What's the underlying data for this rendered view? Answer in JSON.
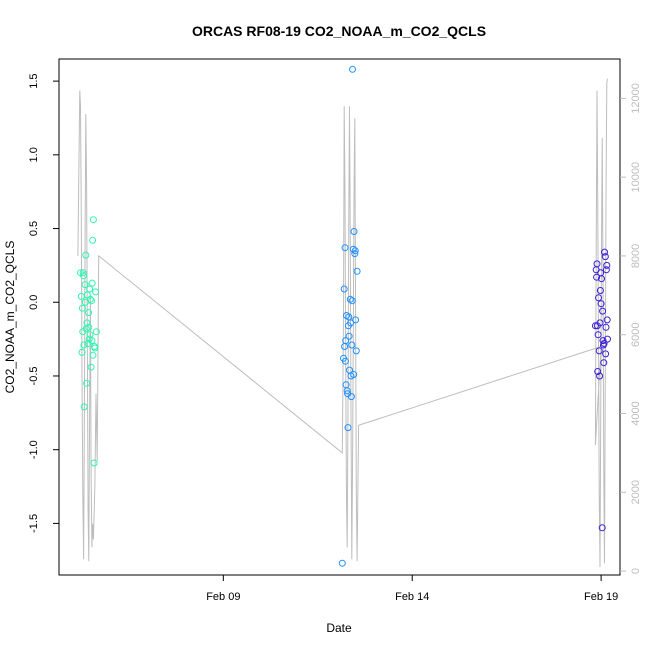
{
  "chart_data": {
    "type": "scatter",
    "title": "ORCAS RF08-19 CO2_NOAA_m_CO2_QCLS",
    "xlabel": "Date",
    "ylabel": "CO2_NOAA_m_CO2_QCLS",
    "x_unit": "days in February",
    "xlim": [
      4.65,
      19.5
    ],
    "ylim": [
      -1.85,
      1.65
    ],
    "y2lim": [
      -100,
      13000
    ],
    "x_ticks": [
      {
        "value": 9,
        "label": "Feb 09"
      },
      {
        "value": 14,
        "label": "Feb 14"
      },
      {
        "value": 19,
        "label": "Feb 19"
      }
    ],
    "y_ticks": [
      {
        "value": -1.5,
        "label": "-1.5"
      },
      {
        "value": -1.0,
        "label": "-1.0"
      },
      {
        "value": -0.5,
        "label": "-0.5"
      },
      {
        "value": 0.0,
        "label": "0.0"
      },
      {
        "value": 0.5,
        "label": "0.5"
      },
      {
        "value": 1.0,
        "label": "1.0"
      },
      {
        "value": 1.5,
        "label": "1.5"
      }
    ],
    "y2_ticks": [
      {
        "value": 0,
        "label": "0"
      },
      {
        "value": 2000,
        "label": "2000"
      },
      {
        "value": 4000,
        "label": "4000"
      },
      {
        "value": 6000,
        "label": "6000"
      },
      {
        "value": 8000,
        "label": "8000"
      },
      {
        "value": 10000,
        "label": "10000"
      },
      {
        "value": 12000,
        "label": "12000"
      }
    ],
    "grid": false,
    "legend": "none",
    "altitude_color": "#bdbdbd",
    "altitude_trace": [
      [
        5.15,
        8000
      ],
      [
        5.18,
        10500
      ],
      [
        5.2,
        12200
      ],
      [
        5.22,
        11800
      ],
      [
        5.24,
        9000
      ],
      [
        5.26,
        5000
      ],
      [
        5.28,
        2000
      ],
      [
        5.3,
        300
      ],
      [
        5.32,
        3500
      ],
      [
        5.34,
        8500
      ],
      [
        5.36,
        11600
      ],
      [
        5.38,
        9800
      ],
      [
        5.4,
        6000
      ],
      [
        5.42,
        1500
      ],
      [
        5.44,
        250
      ],
      [
        5.46,
        4000
      ],
      [
        5.48,
        7000
      ],
      [
        5.5,
        2500
      ],
      [
        5.52,
        600
      ],
      [
        5.54,
        1200
      ],
      [
        5.56,
        800
      ],
      [
        5.6,
        2200
      ],
      [
        5.63,
        4500
      ],
      [
        5.66,
        2800
      ],
      [
        5.7,
        8000
      ],
      [
        12.15,
        3000
      ],
      [
        12.18,
        6500
      ],
      [
        12.2,
        11800
      ],
      [
        12.22,
        9500
      ],
      [
        12.24,
        5200
      ],
      [
        12.26,
        1800
      ],
      [
        12.28,
        600
      ],
      [
        12.3,
        4200
      ],
      [
        12.32,
        9000
      ],
      [
        12.34,
        11800
      ],
      [
        12.36,
        8200
      ],
      [
        12.38,
        4000
      ],
      [
        12.4,
        300
      ],
      [
        12.42,
        2500
      ],
      [
        12.44,
        6000
      ],
      [
        12.46,
        9500
      ],
      [
        12.48,
        11500
      ],
      [
        12.5,
        6500
      ],
      [
        12.52,
        2000
      ],
      [
        12.54,
        250
      ],
      [
        12.58,
        3700
      ],
      [
        19.0,
        5700
      ],
      [
        18.85,
        3200
      ],
      [
        18.87,
        8000
      ],
      [
        18.89,
        12200
      ],
      [
        18.91,
        9500
      ],
      [
        18.93,
        6000
      ],
      [
        18.95,
        2000
      ],
      [
        18.97,
        100
      ],
      [
        18.99,
        3800
      ],
      [
        19.01,
        8200
      ],
      [
        19.03,
        11000
      ],
      [
        19.05,
        7500
      ],
      [
        19.07,
        2500
      ],
      [
        19.09,
        200
      ],
      [
        19.11,
        5000
      ],
      [
        19.13,
        9500
      ],
      [
        19.15,
        12400
      ],
      [
        19.17,
        12500
      ]
    ],
    "series": [
      {
        "color": "#2ef5b0",
        "x": [
          5.22,
          5.24,
          5.26,
          5.28,
          5.3,
          5.32,
          5.34,
          5.36,
          5.38,
          5.4,
          5.42,
          5.44,
          5.46,
          5.48,
          5.5,
          5.52,
          5.54,
          5.56,
          5.58,
          5.6,
          5.62,
          5.64,
          5.27,
          5.31,
          5.35,
          5.39,
          5.43,
          5.47,
          5.51,
          5.55,
          5.59,
          5.29,
          5.37,
          5.45,
          5.53
        ],
        "y": [
          0.2,
          0.04,
          -0.34,
          -0.2,
          0.18,
          -0.71,
          0.12,
          0.32,
          -0.55,
          0.05,
          -0.28,
          -0.17,
          0.09,
          0.02,
          -0.44,
          -0.26,
          0.42,
          0.56,
          -1.09,
          -0.31,
          0.07,
          -0.2,
          -0.04,
          -0.29,
          0.0,
          -0.14,
          -0.07,
          -0.22,
          0.01,
          -0.36,
          -0.3,
          0.2,
          -0.18,
          -0.25,
          0.13
        ]
      },
      {
        "color": "#1e90ff",
        "x": [
          12.15,
          12.18,
          12.2,
          12.22,
          12.24,
          12.26,
          12.28,
          12.3,
          12.32,
          12.34,
          12.36,
          12.38,
          12.4,
          12.42,
          12.44,
          12.46,
          12.48,
          12.5,
          12.52,
          12.54,
          12.21,
          12.25,
          12.29,
          12.33,
          12.37,
          12.41,
          12.45,
          12.49,
          12.23,
          12.31,
          12.39
        ],
        "y": [
          -1.77,
          -0.38,
          0.09,
          0.37,
          -0.26,
          -0.09,
          -0.6,
          -0.85,
          -0.1,
          -0.46,
          0.02,
          -0.5,
          -0.29,
          1.58,
          0.36,
          0.48,
          0.33,
          -0.12,
          -0.33,
          0.21,
          -0.3,
          -0.56,
          -0.62,
          -0.23,
          -0.14,
          0.01,
          -0.49,
          0.35,
          -0.4,
          -0.16,
          -0.64
        ]
      },
      {
        "color": "#3c1fd6",
        "x": [
          18.85,
          18.87,
          18.89,
          18.91,
          18.93,
          18.95,
          18.97,
          18.99,
          19.01,
          19.03,
          19.05,
          19.07,
          19.09,
          19.11,
          19.13,
          19.15,
          19.17,
          18.88,
          18.92,
          18.96,
          19.0,
          19.04,
          19.08,
          19.12,
          19.16,
          18.9,
          18.98,
          19.06,
          19.14
        ],
        "y": [
          -0.16,
          0.22,
          0.26,
          -0.47,
          0.03,
          -0.33,
          -0.14,
          0.2,
          0.16,
          -1.53,
          -0.26,
          -0.41,
          0.34,
          0.31,
          -0.17,
          0.25,
          -0.25,
          0.17,
          -0.22,
          -0.5,
          -0.01,
          -0.06,
          -0.28,
          -0.35,
          -0.12,
          -0.16,
          0.08,
          -0.29,
          0.22
        ]
      }
    ]
  }
}
